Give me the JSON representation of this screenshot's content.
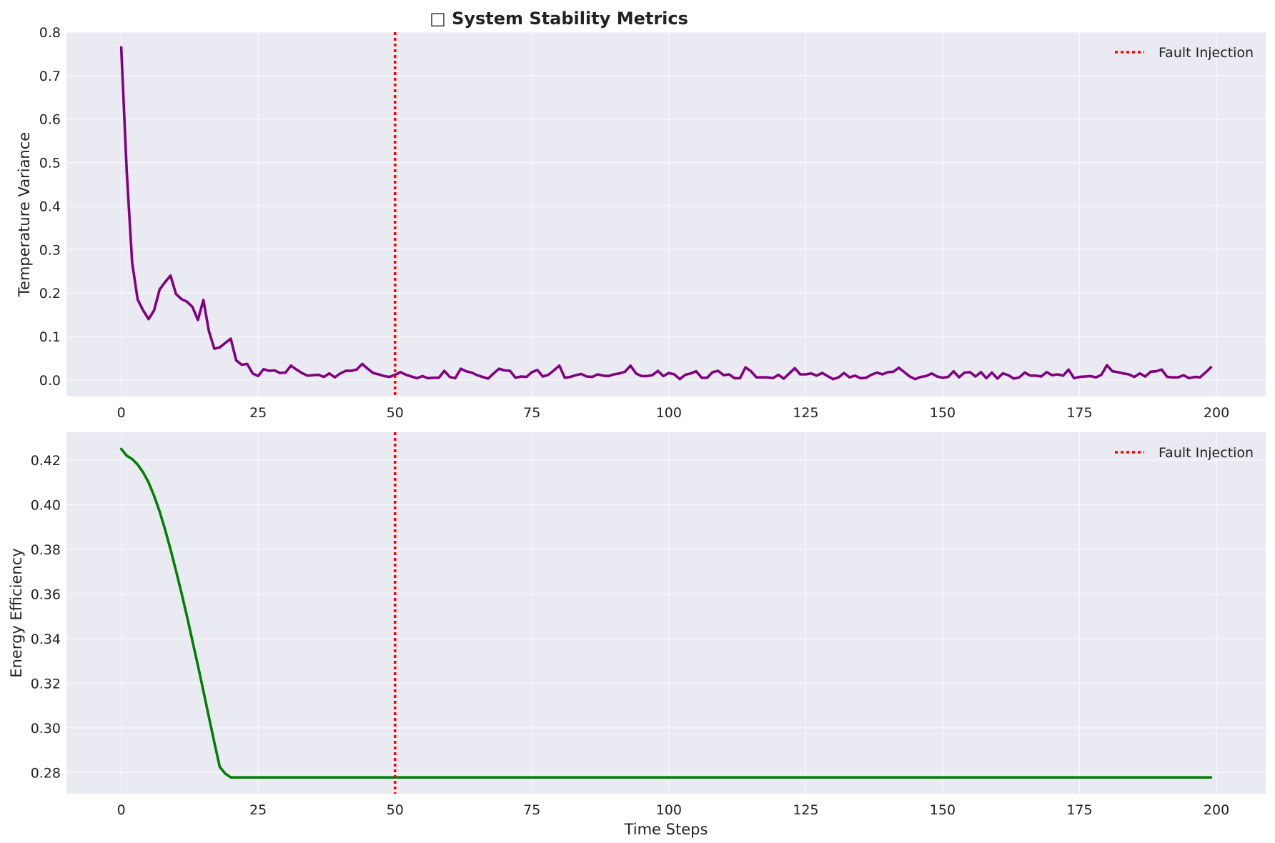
{
  "figure": {
    "title": "□ System Stability Metrics"
  },
  "colors": {
    "axes_bg": "#eaeaf2",
    "grid": "#ffffff",
    "fault_line": "#ff0000",
    "variance_line": "#800080",
    "efficiency_line": "#008000"
  },
  "chart_data": [
    {
      "type": "line",
      "xlabel": "",
      "ylabel": "Temperature Variance",
      "xlim": [
        -10,
        209
      ],
      "ylim": [
        -0.038,
        0.8
      ],
      "xticks": [
        0,
        25,
        50,
        75,
        100,
        125,
        150,
        175,
        200
      ],
      "yticks": [
        0.0,
        0.1,
        0.2,
        0.3,
        0.4,
        0.5,
        0.6,
        0.7,
        0.8
      ],
      "ytick_labels": [
        "0.0",
        "0.1",
        "0.2",
        "0.3",
        "0.4",
        "0.5",
        "0.6",
        "0.7",
        "0.8"
      ],
      "grid": true,
      "legend": {
        "position": "top-right",
        "entries": [
          "Fault Injection"
        ]
      },
      "vline": {
        "x": 50,
        "name": "Fault Injection",
        "style": "dotted"
      },
      "series": [
        {
          "color": "#800080",
          "points": [
            [
              0,
              0.765
            ],
            [
              1,
              0.48
            ],
            [
              2,
              0.27
            ],
            [
              3,
              0.185
            ],
            [
              4,
              0.16
            ],
            [
              5,
              0.14
            ],
            [
              6,
              0.16
            ],
            [
              7,
              0.208
            ],
            [
              8,
              0.225
            ],
            [
              9,
              0.24
            ],
            [
              10,
              0.198
            ],
            [
              11,
              0.186
            ],
            [
              12,
              0.18
            ],
            [
              13,
              0.168
            ],
            [
              14,
              0.138
            ],
            [
              15,
              0.184
            ],
            [
              16,
              0.113
            ],
            [
              17,
              0.072
            ],
            [
              18,
              0.075
            ],
            [
              19,
              0.085
            ],
            [
              20,
              0.095
            ],
            [
              21,
              0.045
            ],
            [
              22,
              0.035
            ],
            [
              23,
              0.037
            ],
            [
              24,
              0.015
            ],
            [
              25,
              0.009
            ],
            [
              26,
              0.025
            ],
            [
              27,
              0.021
            ],
            [
              28,
              0.022
            ],
            [
              29,
              0.016
            ],
            [
              30,
              0.017
            ],
            [
              31,
              0.033
            ],
            [
              32,
              0.024
            ],
            [
              33,
              0.016
            ],
            [
              34,
              0.01
            ],
            [
              35,
              0.011
            ],
            [
              36,
              0.012
            ],
            [
              37,
              0.007
            ],
            [
              38,
              0.015
            ],
            [
              39,
              0.006
            ],
            [
              40,
              0.015
            ],
            [
              41,
              0.021
            ],
            [
              42,
              0.021
            ],
            [
              43,
              0.024
            ],
            [
              44,
              0.037
            ],
            [
              45,
              0.026
            ],
            [
              46,
              0.016
            ],
            [
              47,
              0.013
            ],
            [
              48,
              0.009
            ],
            [
              49,
              0.007
            ],
            [
              50,
              0.012
            ],
            [
              51,
              0.018
            ],
            [
              52,
              0.012
            ],
            [
              53,
              0.008
            ],
            [
              54,
              0.004
            ],
            [
              55,
              0.009
            ],
            [
              56,
              0.004
            ],
            [
              57,
              0.005
            ],
            [
              58,
              0.005
            ],
            [
              59,
              0.021
            ],
            [
              60,
              0.007
            ],
            [
              61,
              0.004
            ],
            [
              62,
              0.026
            ],
            [
              63,
              0.02
            ],
            [
              64,
              0.017
            ],
            [
              65,
              0.011
            ],
            [
              66,
              0.007
            ],
            [
              67,
              0.003
            ],
            [
              68,
              0.015
            ],
            [
              69,
              0.026
            ],
            [
              70,
              0.022
            ],
            [
              71,
              0.021
            ],
            [
              72,
              0.005
            ],
            [
              73,
              0.008
            ],
            [
              74,
              0.007
            ],
            [
              75,
              0.018
            ],
            [
              76,
              0.023
            ],
            [
              77,
              0.008
            ],
            [
              78,
              0.012
            ],
            [
              79,
              0.022
            ],
            [
              80,
              0.033
            ],
            [
              81,
              0.005
            ],
            [
              82,
              0.007
            ],
            [
              83,
              0.011
            ],
            [
              84,
              0.014
            ],
            [
              85,
              0.008
            ],
            [
              86,
              0.007
            ],
            [
              87,
              0.013
            ],
            [
              88,
              0.01
            ],
            [
              89,
              0.009
            ],
            [
              90,
              0.013
            ],
            [
              91,
              0.015
            ],
            [
              92,
              0.019
            ],
            [
              93,
              0.033
            ],
            [
              94,
              0.015
            ],
            [
              95,
              0.009
            ],
            [
              96,
              0.009
            ],
            [
              97,
              0.011
            ],
            [
              98,
              0.021
            ],
            [
              99,
              0.009
            ],
            [
              100,
              0.016
            ],
            [
              101,
              0.013
            ],
            [
              102,
              0.002
            ],
            [
              103,
              0.012
            ],
            [
              104,
              0.015
            ],
            [
              105,
              0.02
            ],
            [
              106,
              0.005
            ],
            [
              107,
              0.005
            ],
            [
              108,
              0.018
            ],
            [
              109,
              0.021
            ],
            [
              110,
              0.011
            ],
            [
              111,
              0.013
            ],
            [
              112,
              0.004
            ],
            [
              113,
              0.004
            ],
            [
              114,
              0.029
            ],
            [
              115,
              0.02
            ],
            [
              116,
              0.006
            ],
            [
              117,
              0.006
            ],
            [
              118,
              0.006
            ],
            [
              119,
              0.004
            ],
            [
              120,
              0.012
            ],
            [
              121,
              0.003
            ],
            [
              122,
              0.015
            ],
            [
              123,
              0.027
            ],
            [
              124,
              0.013
            ],
            [
              125,
              0.013
            ],
            [
              126,
              0.015
            ],
            [
              127,
              0.01
            ],
            [
              128,
              0.016
            ],
            [
              129,
              0.009
            ],
            [
              130,
              0.002
            ],
            [
              131,
              0.006
            ],
            [
              132,
              0.016
            ],
            [
              133,
              0.006
            ],
            [
              134,
              0.01
            ],
            [
              135,
              0.004
            ],
            [
              136,
              0.005
            ],
            [
              137,
              0.012
            ],
            [
              138,
              0.017
            ],
            [
              139,
              0.013
            ],
            [
              140,
              0.018
            ],
            [
              141,
              0.019
            ],
            [
              142,
              0.028
            ],
            [
              143,
              0.018
            ],
            [
              144,
              0.008
            ],
            [
              145,
              0.002
            ],
            [
              146,
              0.007
            ],
            [
              147,
              0.009
            ],
            [
              148,
              0.015
            ],
            [
              149,
              0.008
            ],
            [
              150,
              0.005
            ],
            [
              151,
              0.007
            ],
            [
              152,
              0.02
            ],
            [
              153,
              0.006
            ],
            [
              154,
              0.017
            ],
            [
              155,
              0.018
            ],
            [
              156,
              0.008
            ],
            [
              157,
              0.018
            ],
            [
              158,
              0.004
            ],
            [
              159,
              0.017
            ],
            [
              160,
              0.003
            ],
            [
              161,
              0.015
            ],
            [
              162,
              0.011
            ],
            [
              163,
              0.003
            ],
            [
              164,
              0.006
            ],
            [
              165,
              0.017
            ],
            [
              166,
              0.01
            ],
            [
              167,
              0.01
            ],
            [
              168,
              0.008
            ],
            [
              169,
              0.018
            ],
            [
              170,
              0.011
            ],
            [
              171,
              0.013
            ],
            [
              172,
              0.01
            ],
            [
              173,
              0.024
            ],
            [
              174,
              0.004
            ],
            [
              175,
              0.007
            ],
            [
              176,
              0.008
            ],
            [
              177,
              0.009
            ],
            [
              178,
              0.006
            ],
            [
              179,
              0.012
            ],
            [
              180,
              0.034
            ],
            [
              181,
              0.02
            ],
            [
              182,
              0.018
            ],
            [
              183,
              0.015
            ],
            [
              184,
              0.013
            ],
            [
              185,
              0.007
            ],
            [
              186,
              0.015
            ],
            [
              187,
              0.008
            ],
            [
              188,
              0.019
            ],
            [
              189,
              0.02
            ],
            [
              190,
              0.024
            ],
            [
              191,
              0.007
            ],
            [
              192,
              0.006
            ],
            [
              193,
              0.006
            ],
            [
              194,
              0.011
            ],
            [
              195,
              0.004
            ],
            [
              196,
              0.007
            ],
            [
              197,
              0.006
            ],
            [
              198,
              0.017
            ],
            [
              199,
              0.029
            ]
          ]
        }
      ]
    },
    {
      "type": "line",
      "xlabel": "Time Steps",
      "ylabel": "Energy Efficiency",
      "xlim": [
        -10,
        209
      ],
      "ylim": [
        0.2705,
        0.4325
      ],
      "xticks": [
        0,
        25,
        50,
        75,
        100,
        125,
        150,
        175,
        200
      ],
      "yticks": [
        0.28,
        0.3,
        0.32,
        0.34,
        0.36,
        0.38,
        0.4,
        0.42
      ],
      "ytick_labels": [
        "0.28",
        "0.30",
        "0.32",
        "0.34",
        "0.36",
        "0.38",
        "0.40",
        "0.42"
      ],
      "grid": true,
      "legend": {
        "position": "top-right",
        "entries": [
          "Fault Injection"
        ]
      },
      "vline": {
        "x": 50,
        "name": "Fault Injection",
        "style": "dotted"
      },
      "series": [
        {
          "color": "#008000",
          "points": [
            [
              0,
              0.425
            ],
            [
              1,
              0.422
            ],
            [
              2,
              0.4205
            ],
            [
              3,
              0.418
            ],
            [
              4,
              0.4145
            ],
            [
              5,
              0.41
            ],
            [
              6,
              0.404
            ],
            [
              7,
              0.397
            ],
            [
              8,
              0.389
            ],
            [
              9,
              0.38
            ],
            [
              10,
              0.3705
            ],
            [
              11,
              0.3605
            ],
            [
              12,
              0.35
            ],
            [
              13,
              0.339
            ],
            [
              14,
              0.328
            ],
            [
              15,
              0.3165
            ],
            [
              16,
              0.305
            ],
            [
              17,
              0.2935
            ],
            [
              18,
              0.2825
            ],
            [
              19,
              0.2795
            ],
            [
              20,
              0.2778
            ],
            [
              21,
              0.2778
            ],
            [
              22,
              0.2778
            ],
            [
              23,
              0.2778
            ],
            [
              24,
              0.2778
            ],
            [
              25,
              0.2778
            ],
            [
              50,
              0.2778
            ],
            [
              100,
              0.2778
            ],
            [
              150,
              0.2778
            ],
            [
              199,
              0.2778
            ]
          ]
        }
      ]
    }
  ]
}
